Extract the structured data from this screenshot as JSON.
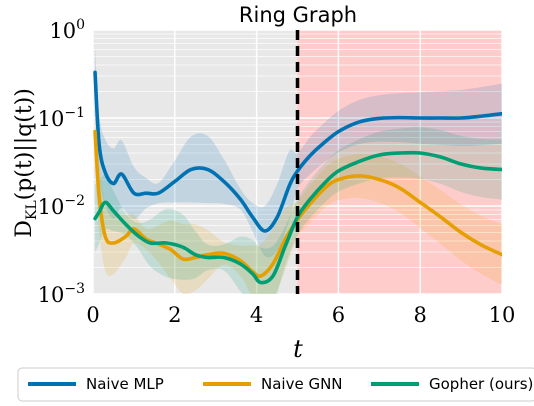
{
  "chart_data": {
    "type": "line",
    "title": "Ring Graph",
    "xlabel": "t",
    "ylabel": "D_KL(p(t)||q(t))",
    "ylabel_parts": {
      "main": "D",
      "sub": "KL",
      "rest": "(p(t)||q(t))"
    },
    "xlim": [
      0,
      10
    ],
    "ylim": [
      0.001,
      1
    ],
    "yscale": "log",
    "x_ticks": [
      "0",
      "2",
      "4",
      "6",
      "8",
      "10"
    ],
    "y_ticks": [
      {
        "base": "10",
        "exp": "0",
        "value": 1
      },
      {
        "base": "10",
        "exp": "−1",
        "value": 0.1
      },
      {
        "base": "10",
        "exp": "−2",
        "value": 0.01
      },
      {
        "base": "10",
        "exp": "−3",
        "value": 0.001
      }
    ],
    "grid": true,
    "legend_position": "bottom",
    "regions": [
      {
        "x_range": [
          0,
          5
        ],
        "color": "#e8e8e8"
      },
      {
        "x_range": [
          5,
          10
        ],
        "color": "#ffcccc"
      }
    ],
    "vline": {
      "x": 5,
      "style": "dashed",
      "color": "#000000"
    },
    "series": [
      {
        "name": "Naive MLP",
        "color": "#0072b2",
        "x": [
          0.05,
          0.15,
          0.3,
          0.5,
          0.7,
          1.0,
          1.3,
          1.6,
          2.0,
          2.4,
          2.8,
          3.2,
          3.6,
          3.9,
          4.2,
          4.5,
          4.8,
          5.0,
          5.3,
          5.6,
          6.0,
          6.5,
          7.0,
          7.5,
          8.0,
          8.5,
          9.0,
          9.5,
          10.0
        ],
        "y": [
          0.33,
          0.05,
          0.024,
          0.018,
          0.023,
          0.014,
          0.014,
          0.014,
          0.019,
          0.026,
          0.026,
          0.019,
          0.012,
          0.0075,
          0.0052,
          0.0074,
          0.017,
          0.025,
          0.037,
          0.05,
          0.07,
          0.09,
          0.099,
          0.101,
          0.1,
          0.1,
          0.1,
          0.105,
          0.112
        ]
      },
      {
        "name": "Naive GNN",
        "color": "#e69f00",
        "x": [
          0.05,
          0.15,
          0.3,
          0.5,
          0.8,
          1.0,
          1.3,
          1.6,
          1.9,
          2.2,
          2.5,
          2.8,
          3.2,
          3.6,
          3.9,
          4.1,
          4.4,
          4.7,
          5.0,
          5.3,
          5.7,
          6.0,
          6.5,
          7.0,
          7.5,
          8.0,
          8.5,
          9.0,
          9.5,
          10.0
        ],
        "y": [
          0.07,
          0.013,
          0.0045,
          0.0038,
          0.0045,
          0.0055,
          0.0042,
          0.0037,
          0.0032,
          0.0025,
          0.0026,
          0.0028,
          0.0029,
          0.0024,
          0.0018,
          0.0016,
          0.0022,
          0.0042,
          0.007,
          0.0105,
          0.0165,
          0.02,
          0.022,
          0.02,
          0.016,
          0.011,
          0.0075,
          0.005,
          0.0036,
          0.0028
        ]
      },
      {
        "name": "Gopher (ours)",
        "color": "#009e73",
        "x": [
          0.05,
          0.15,
          0.3,
          0.5,
          0.8,
          1.1,
          1.4,
          1.8,
          2.2,
          2.5,
          2.8,
          3.2,
          3.6,
          3.9,
          4.1,
          4.4,
          4.7,
          5.0,
          5.3,
          5.7,
          6.0,
          6.5,
          7.0,
          7.5,
          8.0,
          8.5,
          9.0,
          9.5,
          10.0
        ],
        "y": [
          0.0072,
          0.0085,
          0.011,
          0.0088,
          0.0062,
          0.0046,
          0.0038,
          0.0038,
          0.0034,
          0.0028,
          0.0026,
          0.0026,
          0.0022,
          0.0017,
          0.00135,
          0.0016,
          0.0035,
          0.0075,
          0.0118,
          0.019,
          0.025,
          0.032,
          0.038,
          0.04,
          0.04,
          0.036,
          0.03,
          0.027,
          0.026
        ]
      }
    ]
  }
}
